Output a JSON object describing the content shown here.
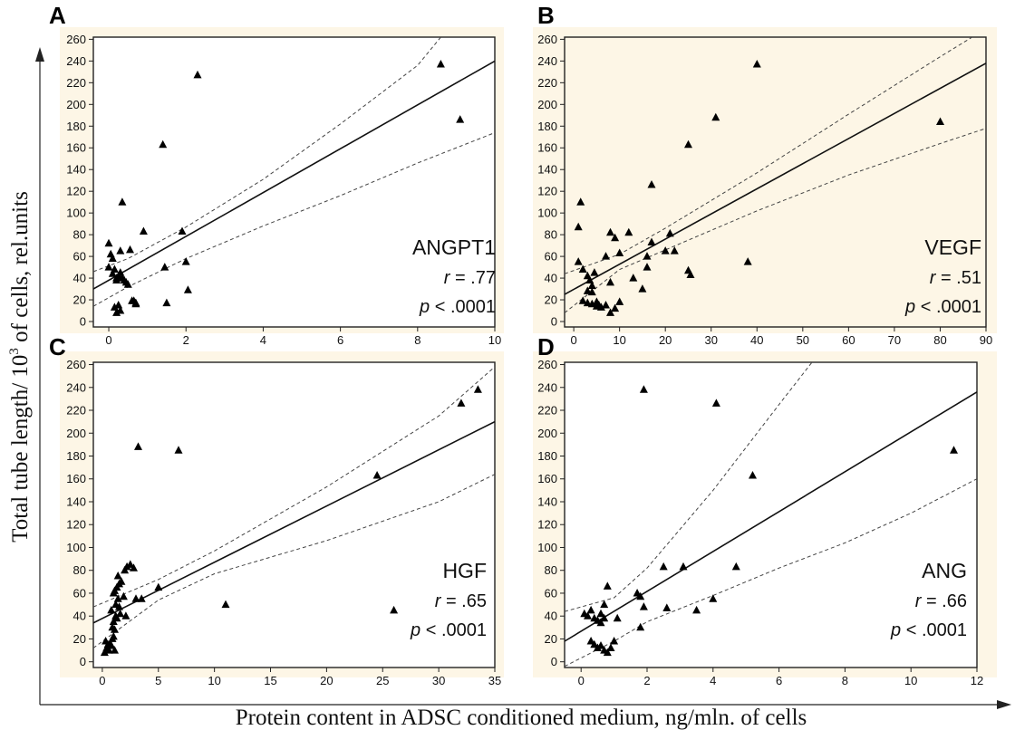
{
  "figure": {
    "x_axis_title": "Protein content in ADSC conditioned medium, ng/mln. of  cells",
    "y_axis_title_main": "Total tube length/ 10",
    "y_axis_title_sup": "3",
    "y_axis_title_tail": " of cells,  rel.units"
  },
  "chart_data": [
    {
      "panel": "A",
      "type": "scatter",
      "annotation": {
        "name": "ANGPT1",
        "r_label": "r",
        "r_value": " = .77",
        "p_label": "p",
        "p_value": " < .0001"
      },
      "xlim": [
        -0.4,
        10
      ],
      "ylim": [
        -5,
        262
      ],
      "xticks": [
        0,
        2,
        4,
        6,
        8,
        10
      ],
      "yticks": [
        0,
        20,
        40,
        60,
        80,
        100,
        120,
        140,
        160,
        180,
        200,
        220,
        240,
        260
      ],
      "fit": {
        "x": [
          -0.4,
          10
        ],
        "y": [
          30,
          240
        ]
      },
      "ci_upper": {
        "x": [
          -0.4,
          0.5,
          2,
          4,
          6,
          8,
          8.6
        ],
        "y": [
          46,
          58,
          87,
          131,
          182,
          236,
          262
        ]
      },
      "ci_lower": {
        "x": [
          -0.4,
          0.5,
          2,
          4,
          6,
          8,
          10
        ],
        "y": [
          14,
          32,
          58,
          88,
          116,
          146,
          174
        ]
      },
      "points": {
        "x": [
          0.0,
          0.05,
          0.1,
          0.0,
          0.15,
          0.1,
          0.2,
          0.2,
          0.25,
          0.3,
          0.35,
          0.4,
          0.45,
          0.5,
          0.55,
          0.6,
          0.7,
          0.3,
          0.35,
          0.25,
          0.15,
          0.3,
          0.2,
          0.65,
          0.7,
          0.9,
          1.4,
          1.45,
          1.5,
          1.9,
          2.0,
          2.05,
          2.3,
          8.6,
          9.1
        ],
        "y": [
          72,
          62,
          58,
          50,
          48,
          44,
          40,
          38,
          42,
          45,
          40,
          38,
          36,
          34,
          66,
          19,
          16,
          65,
          110,
          15,
          13,
          10,
          8,
          19,
          17,
          83,
          163,
          50,
          17,
          83,
          55,
          29,
          227,
          237,
          186
        ]
      }
    },
    {
      "panel": "B",
      "type": "scatter",
      "annotation": {
        "name": "VEGF",
        "r_label": "r",
        "r_value": " = .51",
        "p_label": "p",
        "p_value": " < .0001"
      },
      "xlim": [
        -2,
        90
      ],
      "ylim": [
        -5,
        262
      ],
      "xticks": [
        0,
        10,
        20,
        30,
        40,
        50,
        60,
        70,
        80,
        90
      ],
      "yticks": [
        0,
        20,
        40,
        60,
        80,
        100,
        120,
        140,
        160,
        180,
        200,
        220,
        240,
        260
      ],
      "fit": {
        "x": [
          -2,
          90
        ],
        "y": [
          25,
          238
        ]
      },
      "ci_upper": {
        "x": [
          -2,
          10,
          20,
          40,
          60,
          80,
          87
        ],
        "y": [
          44,
          62,
          86,
          137,
          191,
          244,
          262
        ]
      },
      "ci_lower": {
        "x": [
          -2,
          10,
          20,
          40,
          60,
          80,
          90
        ],
        "y": [
          8,
          48,
          66,
          102,
          135,
          164,
          178
        ]
      },
      "points": {
        "x": [
          1,
          1.5,
          1,
          2,
          3,
          3.5,
          4,
          4.5,
          3,
          4,
          5,
          5.5,
          2,
          3,
          4,
          5,
          6,
          7,
          8,
          9,
          10,
          8,
          9,
          10,
          7,
          8,
          12,
          13,
          15,
          16,
          16,
          17,
          17,
          20,
          21,
          22,
          25,
          25.5,
          25,
          31,
          38,
          40,
          80
        ],
        "y": [
          55,
          110,
          87,
          48,
          42,
          38,
          33,
          45,
          28,
          27,
          18,
          15,
          19,
          17,
          16,
          14,
          13,
          15,
          8,
          12,
          18,
          82,
          77,
          63,
          60,
          36,
          82,
          40,
          30,
          60,
          50,
          73,
          126,
          65,
          81,
          65,
          47,
          43,
          163,
          188,
          55,
          237,
          184
        ]
      }
    },
    {
      "panel": "C",
      "type": "scatter",
      "annotation": {
        "name": "HGF",
        "r_label": "r",
        "r_value": " = .65",
        "p_label": "p",
        "p_value": " < .0001"
      },
      "xlim": [
        -0.8,
        35
      ],
      "ylim": [
        -5,
        262
      ],
      "xticks": [
        0,
        5,
        10,
        15,
        20,
        25,
        30,
        35
      ],
      "yticks": [
        0,
        20,
        40,
        60,
        80,
        100,
        120,
        140,
        160,
        180,
        200,
        220,
        240,
        260
      ],
      "fit": {
        "x": [
          -0.8,
          35
        ],
        "y": [
          34,
          210
        ]
      },
      "ci_upper": {
        "x": [
          -0.8,
          5,
          10,
          20,
          30,
          35
        ],
        "y": [
          48,
          72,
          97,
          153,
          215,
          258
        ]
      },
      "ci_lower": {
        "x": [
          -0.8,
          5,
          10,
          20,
          30,
          35
        ],
        "y": [
          12,
          54,
          77,
          106,
          140,
          164
        ]
      },
      "points": {
        "x": [
          0.2,
          0.4,
          0.6,
          0.3,
          0.5,
          0.7,
          0.8,
          0.9,
          1.0,
          1.1,
          0.9,
          1.0,
          1.2,
          1.3,
          1.1,
          0.8,
          1.2,
          1.4,
          1.5,
          1.6,
          1.0,
          1.1,
          1.3,
          1.5,
          1.7,
          2.0,
          2.2,
          2.5,
          2.8,
          3.0,
          1.4,
          1.9,
          2.1,
          3.5,
          3.2,
          5.0,
          6.8,
          11.0,
          24.5,
          26.0,
          32.0,
          33.5
        ],
        "y": [
          8,
          12,
          10,
          18,
          15,
          16,
          14,
          20,
          22,
          10,
          30,
          35,
          40,
          38,
          28,
          45,
          50,
          55,
          48,
          42,
          60,
          62,
          65,
          68,
          70,
          80,
          83,
          85,
          82,
          55,
          75,
          57,
          40,
          55,
          188,
          65,
          185,
          50,
          163,
          45,
          226,
          238
        ]
      }
    },
    {
      "panel": "D",
      "type": "scatter",
      "annotation": {
        "name": "ANG",
        "r_label": "r",
        "r_value": " = .66",
        "p_label": "p",
        "p_value": " < .0001"
      },
      "xlim": [
        -0.5,
        12
      ],
      "ylim": [
        -5,
        262
      ],
      "xticks": [
        0,
        2,
        4,
        6,
        8,
        10,
        12
      ],
      "yticks": [
        0,
        20,
        40,
        60,
        80,
        100,
        120,
        140,
        160,
        180,
        200,
        220,
        240,
        260
      ],
      "fit": {
        "x": [
          -0.5,
          12
        ],
        "y": [
          18,
          236
        ]
      },
      "ci_upper": {
        "x": [
          -0.5,
          1,
          2,
          4,
          6,
          7.0
        ],
        "y": [
          44,
          56,
          82,
          150,
          225,
          262
        ]
      },
      "ci_lower": {
        "x": [
          -0.5,
          1,
          2,
          4,
          6,
          8,
          10,
          12
        ],
        "y": [
          -4,
          18,
          35,
          58,
          82,
          104,
          130,
          160
        ]
      },
      "points": {
        "x": [
          0.1,
          0.2,
          0.3,
          0.4,
          0.5,
          0.6,
          0.7,
          0.3,
          0.4,
          0.5,
          0.6,
          0.7,
          0.8,
          0.9,
          1.0,
          0.6,
          0.7,
          0.8,
          1.1,
          1.7,
          1.8,
          1.9,
          1.8,
          2.5,
          2.6,
          3.1,
          3.5,
          4.0,
          1.9,
          4.1,
          4.7,
          5.2,
          11.3
        ],
        "y": [
          42,
          40,
          45,
          38,
          36,
          34,
          50,
          18,
          15,
          12,
          14,
          10,
          8,
          12,
          18,
          42,
          38,
          66,
          38,
          60,
          57,
          48,
          30,
          83,
          47,
          83,
          45,
          55,
          238,
          226,
          83,
          163,
          185
        ]
      }
    }
  ]
}
